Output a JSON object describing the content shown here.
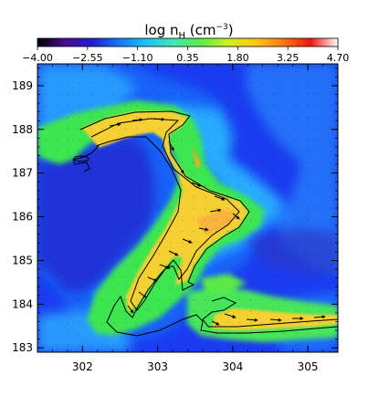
{
  "chart_data": {
    "type": "heatmap",
    "title": "log n",
    "title_subscript": "H",
    "title_unit_open": " (cm",
    "title_unit_exp": "−3",
    "title_unit_close": ")",
    "colorbar": {
      "range": [
        -4.0,
        4.7
      ],
      "tick_labels": [
        "−4.00",
        "−2.55",
        "−1.10",
        "0.35",
        "1.80",
        "3.25",
        "4.70"
      ],
      "tick_values": [
        -4.0,
        -2.55,
        -1.1,
        0.35,
        1.8,
        3.25,
        4.7
      ],
      "colors": [
        "#000000",
        "#4a0c8c",
        "#1e1ed2",
        "#1478ff",
        "#14c8f0",
        "#46e6b4",
        "#5aee46",
        "#d2f01e",
        "#fac814",
        "#ff7814",
        "#f01414",
        "#ffffff"
      ],
      "placement": "top"
    },
    "x_axis": {
      "range": [
        301.4,
        305.4
      ],
      "ticks": [
        302,
        303,
        304,
        305
      ],
      "tick_labels": [
        "302",
        "303",
        "304",
        "305"
      ],
      "label": ""
    },
    "y_axis": {
      "range": [
        182.9,
        189.5
      ],
      "ticks": [
        183,
        184,
        185,
        186,
        187,
        188,
        189
      ],
      "tick_labels": [
        "183",
        "184",
        "185",
        "186",
        "187",
        "188",
        "189"
      ],
      "label": ""
    },
    "vector_field": true,
    "contours": true,
    "background_color": "#1a3cf0",
    "dense_filament_color": "#f5d030",
    "filament_envelope_color": "#3ce650"
  }
}
